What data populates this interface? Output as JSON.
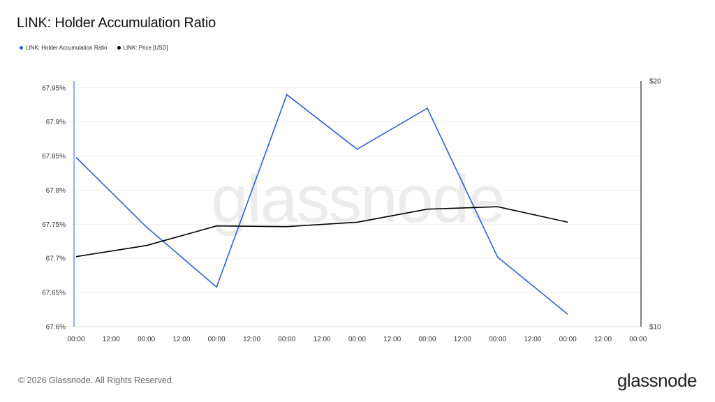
{
  "title": "LINK: Holder Accumulation Ratio",
  "legend": {
    "items": [
      {
        "label": "LINK: Holder Accumulation Ratio",
        "color": "#2d5fd6"
      },
      {
        "label": "LINK: Price [USD]",
        "color": "#000000"
      }
    ]
  },
  "watermark": "glassnode",
  "footer": {
    "copyright": "© 2026 Glassnode. All Rights Reserved.",
    "brand": "glassnode"
  },
  "chart_data": {
    "type": "line",
    "title": "LINK: Holder Accumulation Ratio",
    "x_tick_labels": [
      "00:00",
      "12:00",
      "00:00",
      "12:00",
      "00:00",
      "12:00",
      "00:00",
      "12:00",
      "00:00",
      "12:00",
      "00:00",
      "12:00",
      "00:00",
      "12:00",
      "00:00",
      "12:00",
      "00:00"
    ],
    "left_axis": {
      "ticks": [
        "67.6%",
        "67.65%",
        "67.7%",
        "67.75%",
        "67.8%",
        "67.85%",
        "67.9%",
        "67.95%"
      ],
      "ylim": [
        67.6,
        67.96
      ]
    },
    "right_axis": {
      "ticks": [
        "$10",
        "$20"
      ],
      "ylim": [
        10,
        20
      ]
    },
    "grid": true,
    "series": [
      {
        "name": "LINK: Holder Accumulation Ratio",
        "axis": "left",
        "color": "#2d5fd6",
        "x_index": [
          0,
          2,
          4,
          6,
          8,
          10,
          12,
          14
        ],
        "values": [
          67.848,
          67.746,
          67.658,
          67.94,
          67.86,
          67.92,
          67.702,
          67.618
        ]
      },
      {
        "name": "LINK: Price [USD]",
        "axis": "right",
        "color": "#000000",
        "x_index": [
          0,
          2,
          4,
          6,
          8,
          10,
          12,
          14
        ],
        "values": [
          12.85,
          13.3,
          14.1,
          14.07,
          14.25,
          14.78,
          14.88,
          14.25
        ]
      }
    ]
  }
}
